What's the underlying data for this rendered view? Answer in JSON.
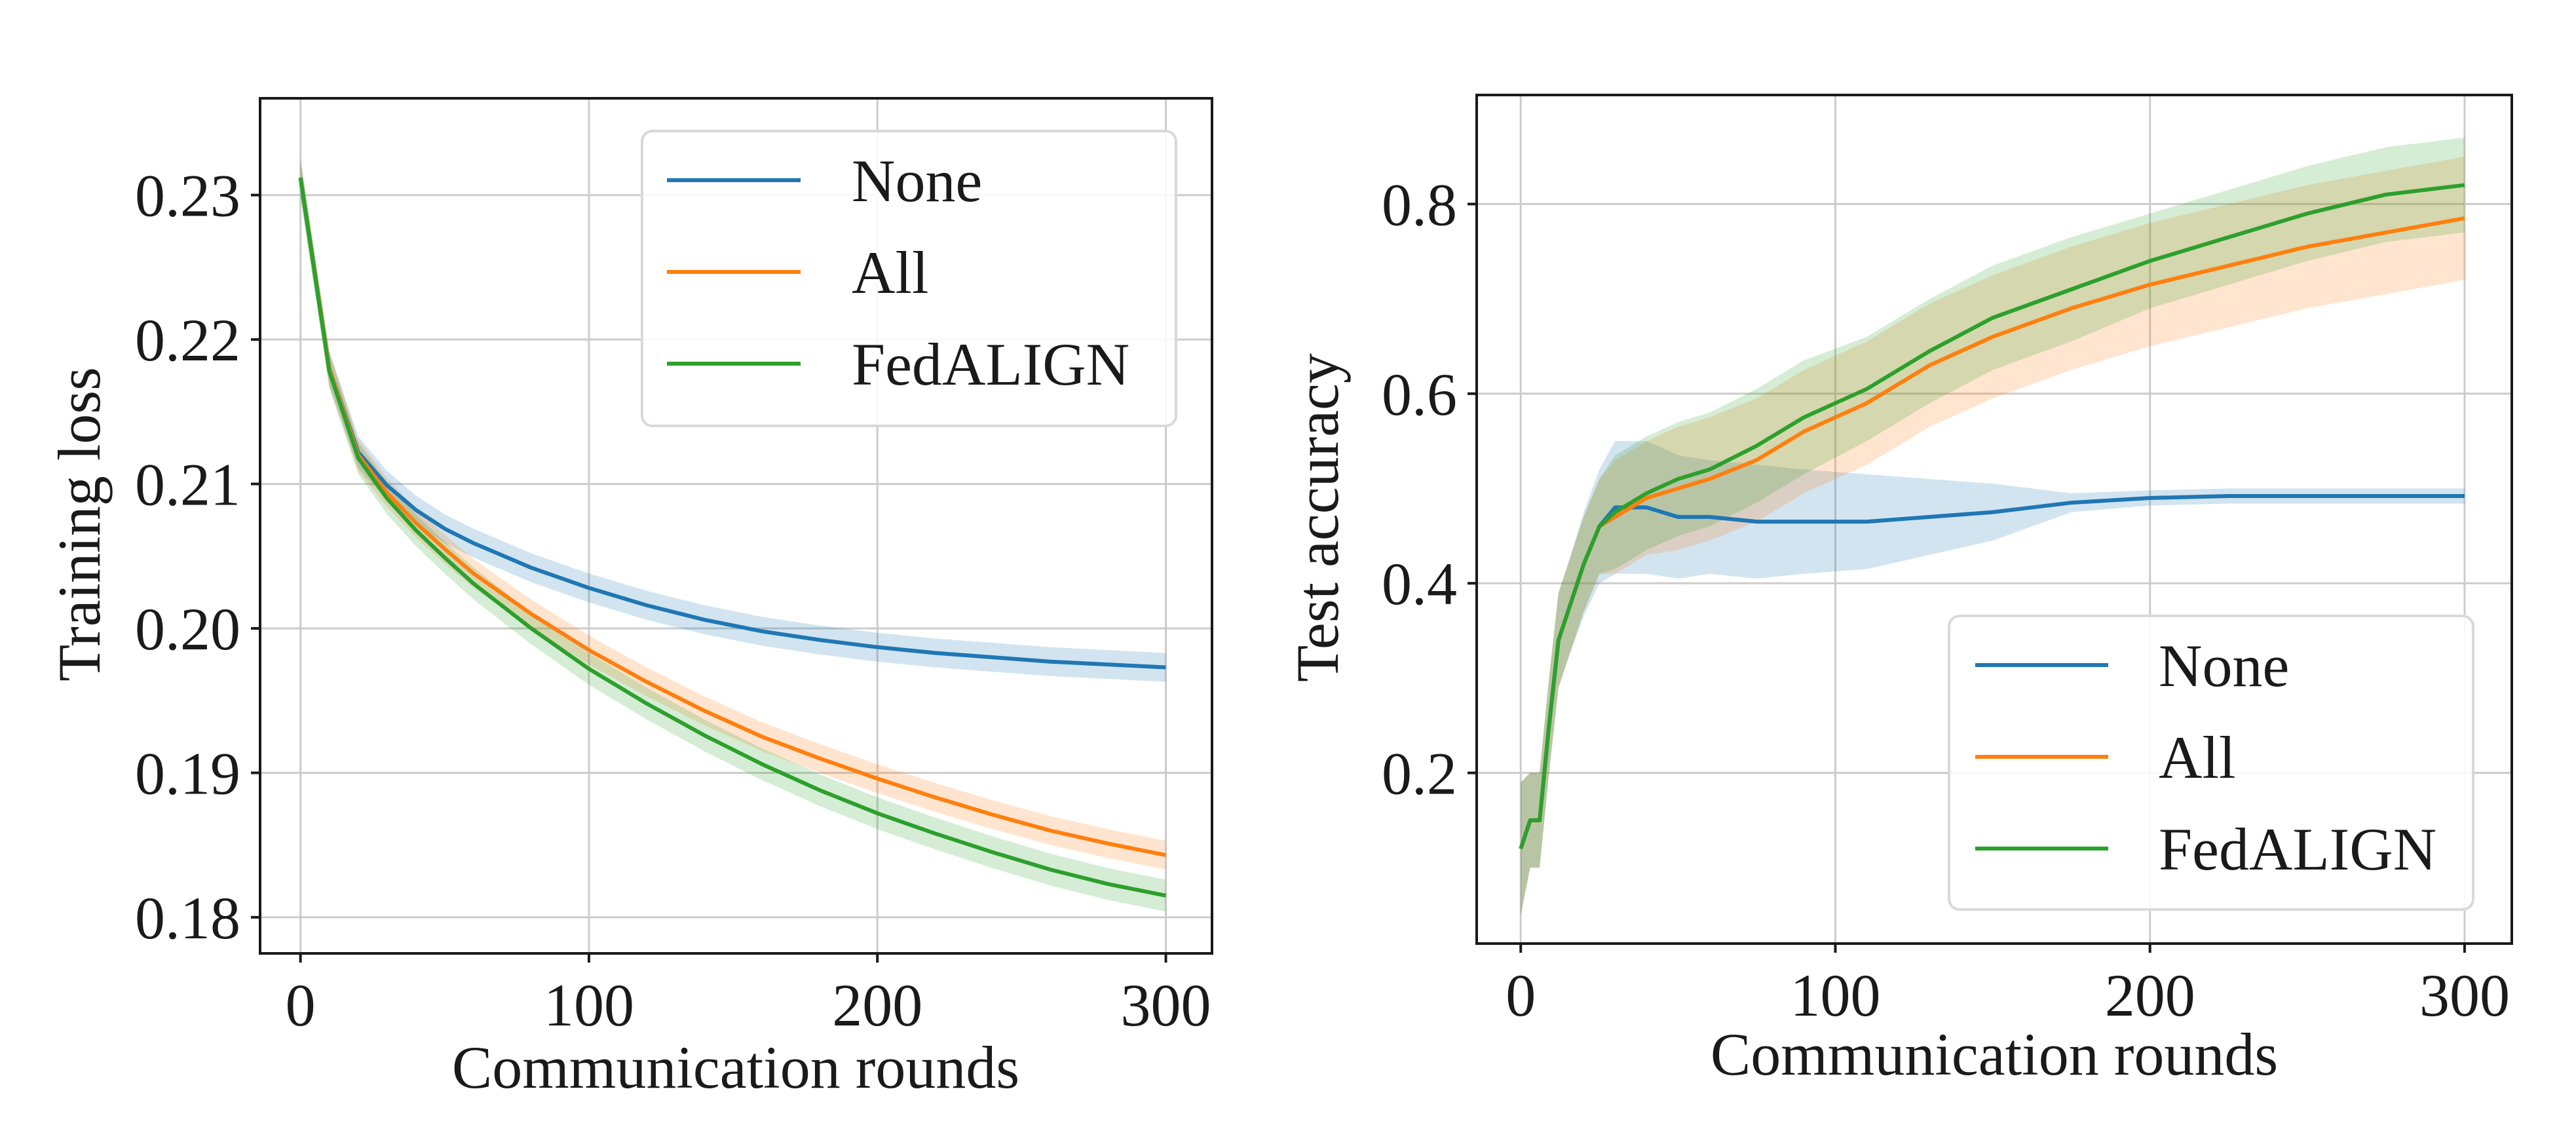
{
  "colors": {
    "none": "#1f77b4",
    "all": "#ff7f0e",
    "fedalign": "#2ca02c",
    "grid": "#cccccc",
    "axis": "#1a1a1a"
  },
  "chart_data": [
    {
      "type": "line",
      "title": "",
      "xlabel": "Communication rounds",
      "ylabel": "Training loss",
      "xlim": [
        -14,
        316
      ],
      "ylim": [
        0.1775,
        0.2367
      ],
      "xticks": [
        0,
        100,
        200,
        300
      ],
      "xtick_labels": [
        "0",
        "100",
        "200",
        "300"
      ],
      "yticks": [
        0.18,
        0.19,
        0.2,
        0.21,
        0.22,
        0.23
      ],
      "ytick_labels": [
        "0.18",
        "0.19",
        "0.20",
        "0.21",
        "0.22",
        "0.23"
      ],
      "grid": true,
      "legend_position": "upper right",
      "x": [
        0,
        10,
        20,
        30,
        40,
        50,
        60,
        80,
        100,
        120,
        140,
        160,
        180,
        200,
        220,
        240,
        260,
        280,
        300
      ],
      "series": [
        {
          "key": "none",
          "name": "None",
          "values": [
            0.2312,
            0.218,
            0.2122,
            0.2099,
            0.2082,
            0.2069,
            0.2059,
            0.2042,
            0.2028,
            0.2016,
            0.2006,
            0.1998,
            0.1992,
            0.1987,
            0.1983,
            0.198,
            0.1977,
            0.1975,
            0.1973
          ],
          "band": [
            0.0013,
            0.0012,
            0.0011,
            0.001,
            0.001,
            0.001,
            0.001,
            0.001,
            0.001,
            0.001,
            0.001,
            0.001,
            0.001,
            0.001,
            0.001,
            0.001,
            0.001,
            0.001,
            0.001
          ]
        },
        {
          "key": "all",
          "name": "All",
          "values": [
            0.2312,
            0.218,
            0.212,
            0.2094,
            0.2073,
            0.2055,
            0.2038,
            0.201,
            0.1985,
            0.1963,
            0.1943,
            0.1925,
            0.191,
            0.1896,
            0.1883,
            0.1871,
            0.186,
            0.1851,
            0.1843
          ],
          "band": [
            0.0013,
            0.0012,
            0.0011,
            0.001,
            0.001,
            0.001,
            0.001,
            0.001,
            0.001,
            0.001,
            0.001,
            0.001,
            0.001,
            0.001,
            0.001,
            0.001,
            0.001,
            0.001,
            0.001
          ]
        },
        {
          "key": "fedalign",
          "name": "FedALIGN",
          "values": [
            0.2312,
            0.2178,
            0.2118,
            0.209,
            0.2068,
            0.2049,
            0.2031,
            0.2,
            0.1972,
            0.1948,
            0.1926,
            0.1906,
            0.1888,
            0.1872,
            0.1858,
            0.1845,
            0.1833,
            0.1823,
            0.1815
          ],
          "band": [
            0.0013,
            0.0012,
            0.0011,
            0.0011,
            0.0011,
            0.0011,
            0.0011,
            0.0011,
            0.0011,
            0.0011,
            0.0011,
            0.0011,
            0.0011,
            0.0011,
            0.0011,
            0.0011,
            0.0011,
            0.0011,
            0.0011
          ]
        }
      ]
    },
    {
      "type": "line",
      "title": "",
      "xlabel": "Communication rounds",
      "ylabel": "Test accuracy",
      "xlim": [
        -14,
        315
      ],
      "ylim": [
        0.02,
        0.915
      ],
      "xticks": [
        0,
        100,
        200,
        300
      ],
      "xtick_labels": [
        "0",
        "100",
        "200",
        "300"
      ],
      "yticks": [
        0.2,
        0.4,
        0.6,
        0.8
      ],
      "ytick_labels": [
        "0.2",
        "0.4",
        "0.6",
        "0.8"
      ],
      "grid": true,
      "legend_position": "lower right",
      "x": [
        0,
        3,
        6,
        9,
        12,
        15,
        20,
        25,
        30,
        35,
        40,
        50,
        60,
        75,
        90,
        110,
        130,
        150,
        175,
        200,
        225,
        250,
        275,
        300
      ],
      "series": [
        {
          "key": "none",
          "name": "None",
          "values": [
            0.12,
            0.15,
            0.15,
            0.25,
            0.34,
            0.37,
            0.42,
            0.46,
            0.48,
            0.48,
            0.48,
            0.47,
            0.47,
            0.465,
            0.465,
            0.465,
            0.47,
            0.475,
            0.485,
            0.49,
            0.492,
            0.492,
            0.492,
            0.492
          ],
          "band": [
            0.07,
            0.05,
            0.05,
            0.05,
            0.05,
            0.05,
            0.055,
            0.06,
            0.07,
            0.07,
            0.07,
            0.065,
            0.06,
            0.06,
            0.055,
            0.05,
            0.04,
            0.03,
            0.01,
            0.008,
            0.008,
            0.008,
            0.008,
            0.008
          ]
        },
        {
          "key": "all",
          "name": "All",
          "values": [
            0.12,
            0.15,
            0.15,
            0.25,
            0.34,
            0.37,
            0.42,
            0.46,
            0.47,
            0.48,
            0.49,
            0.5,
            0.51,
            0.53,
            0.56,
            0.59,
            0.63,
            0.66,
            0.69,
            0.715,
            0.735,
            0.755,
            0.77,
            0.785
          ],
          "band": [
            0.07,
            0.05,
            0.05,
            0.05,
            0.05,
            0.05,
            0.05,
            0.05,
            0.06,
            0.06,
            0.06,
            0.065,
            0.065,
            0.065,
            0.065,
            0.065,
            0.065,
            0.065,
            0.065,
            0.065,
            0.065,
            0.065,
            0.065,
            0.065
          ]
        },
        {
          "key": "fedalign",
          "name": "FedALIGN",
          "values": [
            0.12,
            0.15,
            0.15,
            0.25,
            0.34,
            0.37,
            0.42,
            0.46,
            0.475,
            0.485,
            0.495,
            0.51,
            0.52,
            0.545,
            0.575,
            0.605,
            0.645,
            0.68,
            0.71,
            0.74,
            0.765,
            0.79,
            0.81,
            0.82
          ],
          "band": [
            0.07,
            0.05,
            0.05,
            0.05,
            0.05,
            0.05,
            0.05,
            0.05,
            0.06,
            0.06,
            0.06,
            0.06,
            0.06,
            0.06,
            0.06,
            0.055,
            0.055,
            0.055,
            0.055,
            0.05,
            0.05,
            0.05,
            0.05,
            0.05
          ]
        }
      ]
    }
  ]
}
